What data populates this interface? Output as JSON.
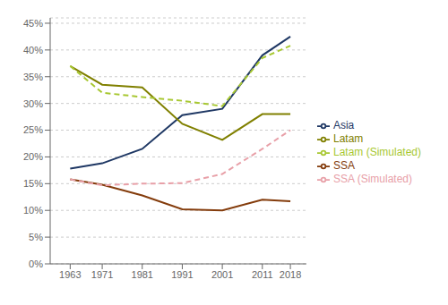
{
  "chart_data": {
    "type": "line",
    "x": [
      1963,
      1971,
      1981,
      1991,
      2001,
      2011,
      2018
    ],
    "xlim": [
      1958,
      2022
    ],
    "xticks": [
      1963,
      1971,
      1981,
      1991,
      2001,
      2011,
      2018
    ],
    "ylim": [
      0,
      0.46
    ],
    "yticks": [
      {
        "value": 0,
        "label": "0%"
      },
      {
        "value": 0.05,
        "label": "5%"
      },
      {
        "value": 0.1,
        "label": "10%"
      },
      {
        "value": 0.15,
        "label": "15%"
      },
      {
        "value": 0.2,
        "label": "20%"
      },
      {
        "value": 0.25,
        "label": "25%"
      },
      {
        "value": 0.3,
        "label": "30%"
      },
      {
        "value": 0.35,
        "label": "35%"
      },
      {
        "value": 0.4,
        "label": "40%"
      },
      {
        "value": 0.45,
        "label": "45%"
      }
    ],
    "grid": "y",
    "legend": "right",
    "series": [
      {
        "name": "Asia",
        "color": "#1f3864",
        "line_style": "solid",
        "values": [
          0.178,
          0.188,
          0.215,
          0.278,
          0.29,
          0.39,
          0.425
        ]
      },
      {
        "name": "SSA",
        "color": "#843c0c",
        "line_style": "solid",
        "values": [
          0.158,
          0.148,
          0.128,
          0.102,
          0.1,
          0.12,
          0.117
        ]
      },
      {
        "name": "Latam",
        "color": "#808000",
        "line_style": "solid",
        "values": [
          0.37,
          0.335,
          0.33,
          0.262,
          0.232,
          0.28,
          0.28
        ]
      },
      {
        "name": "SSA (Simulated)",
        "color": "#e8a0a8",
        "line_style": "dashed",
        "values": [
          0.158,
          0.147,
          0.15,
          0.151,
          0.168,
          0.215,
          0.25
        ]
      },
      {
        "name": "Latam (Simulated)",
        "color": "#a8c832",
        "line_style": "dashed",
        "values": [
          0.37,
          0.32,
          0.312,
          0.305,
          0.295,
          0.385,
          0.408
        ]
      }
    ]
  }
}
